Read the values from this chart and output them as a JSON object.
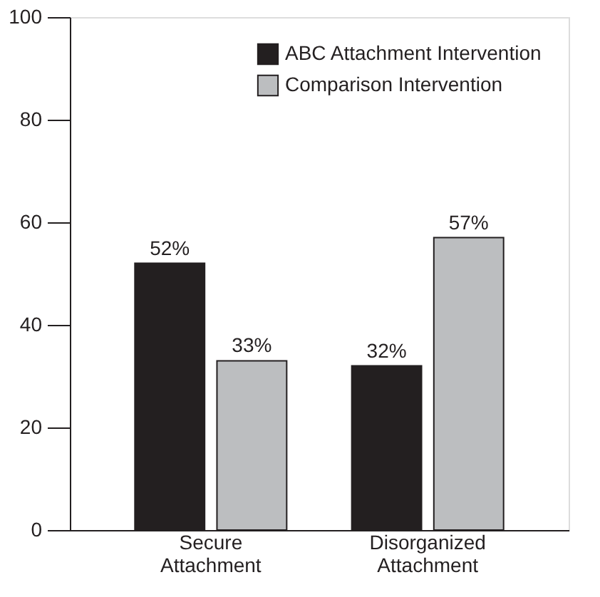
{
  "chart_data": {
    "type": "bar",
    "categories": [
      "Secure Attachment",
      "Disorganized Attachment"
    ],
    "series": [
      {
        "name": "ABC Attachment Intervention",
        "color": "#231f20",
        "values": [
          52,
          32
        ],
        "value_labels": [
          "52%",
          "32%"
        ]
      },
      {
        "name": "Comparison Intervention",
        "color": "#bcbec0",
        "values": [
          33,
          57
        ],
        "value_labels": [
          "33%",
          "57%"
        ]
      }
    ],
    "ylim": [
      0,
      100
    ],
    "yticks": [
      0,
      20,
      40,
      60,
      80,
      100
    ],
    "grid": false,
    "legend": "top right"
  }
}
